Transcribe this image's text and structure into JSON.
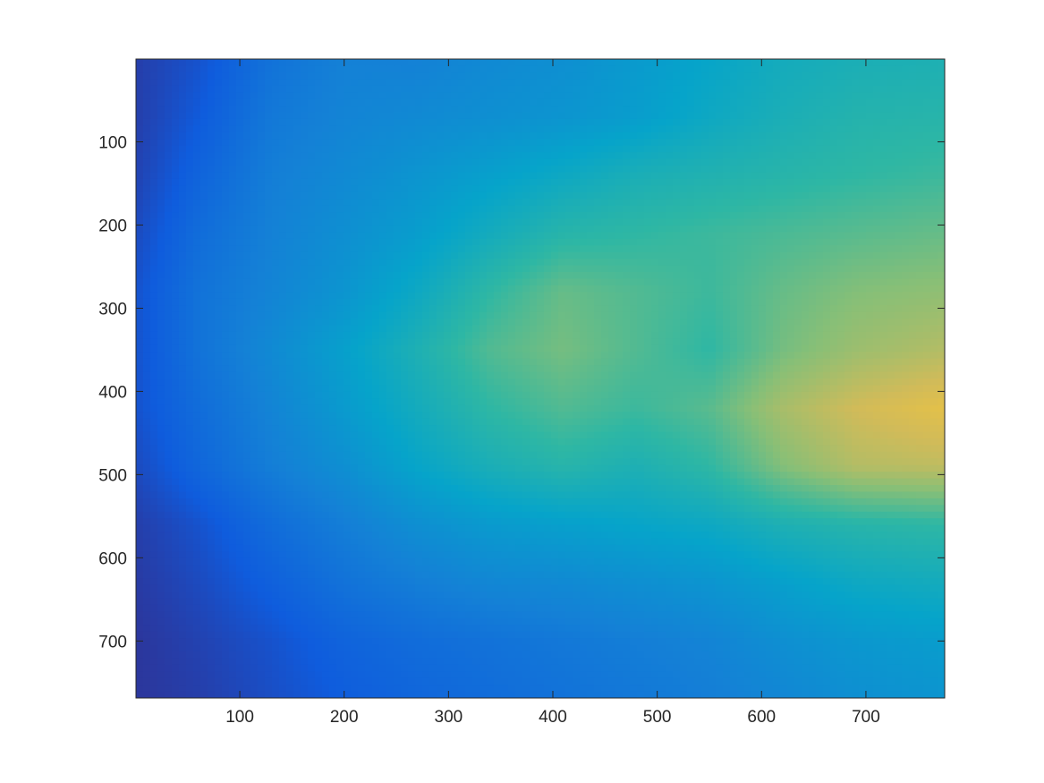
{
  "chart_data": {
    "type": "heatmap",
    "title": "",
    "xlabel": "",
    "ylabel": "",
    "xlim": [
      0.5,
      775.5
    ],
    "ylim": [
      0.5,
      768.5
    ],
    "y_reversed": true,
    "grid": false,
    "colorbar": false,
    "colormap": "parula",
    "x_ticks": [
      100,
      200,
      300,
      400,
      500,
      600,
      700
    ],
    "y_ticks": [
      100,
      200,
      300,
      400,
      500,
      600,
      700
    ],
    "x_tick_labels": [
      "100",
      "200",
      "300",
      "400",
      "500",
      "600",
      "700"
    ],
    "y_tick_labels": [
      "100",
      "200",
      "300",
      "400",
      "500",
      "600",
      "700"
    ],
    "colormap_stops": [
      "#352a87",
      "#0f5cdd",
      "#1481d6",
      "#06a4ca",
      "#2eb7a4",
      "#87bf77",
      "#d1bb59",
      "#fec832",
      "#f9fb0e"
    ],
    "x_sample": [
      0,
      60,
      130,
      200,
      270,
      340,
      410,
      480,
      550,
      620,
      690,
      775
    ],
    "y_sample": [
      0,
      70,
      140,
      210,
      280,
      350,
      420,
      490,
      560,
      630,
      700,
      768
    ],
    "values": [
      [
        0.05,
        0.1,
        0.2,
        0.25,
        0.25,
        0.28,
        0.3,
        0.34,
        0.38,
        0.42,
        0.44,
        0.45
      ],
      [
        0.05,
        0.12,
        0.22,
        0.26,
        0.28,
        0.3,
        0.32,
        0.35,
        0.4,
        0.44,
        0.47,
        0.48
      ],
      [
        0.06,
        0.15,
        0.24,
        0.28,
        0.32,
        0.36,
        0.4,
        0.44,
        0.46,
        0.48,
        0.5,
        0.52
      ],
      [
        0.08,
        0.18,
        0.25,
        0.3,
        0.35,
        0.42,
        0.48,
        0.5,
        0.52,
        0.54,
        0.56,
        0.58
      ],
      [
        0.1,
        0.2,
        0.26,
        0.32,
        0.4,
        0.5,
        0.58,
        0.55,
        0.52,
        0.58,
        0.62,
        0.64
      ],
      [
        0.1,
        0.2,
        0.28,
        0.36,
        0.45,
        0.55,
        0.6,
        0.55,
        0.5,
        0.6,
        0.66,
        0.7
      ],
      [
        0.1,
        0.18,
        0.26,
        0.34,
        0.42,
        0.5,
        0.55,
        0.52,
        0.56,
        0.68,
        0.75,
        0.8
      ],
      [
        0.08,
        0.16,
        0.24,
        0.3,
        0.38,
        0.44,
        0.48,
        0.45,
        0.5,
        0.62,
        0.7,
        0.72
      ],
      [
        0.05,
        0.1,
        0.18,
        0.24,
        0.3,
        0.34,
        0.36,
        0.38,
        0.4,
        0.45,
        0.48,
        0.5
      ],
      [
        0.04,
        0.08,
        0.14,
        0.2,
        0.24,
        0.27,
        0.28,
        0.3,
        0.32,
        0.36,
        0.4,
        0.42
      ],
      [
        0.03,
        0.06,
        0.1,
        0.15,
        0.18,
        0.2,
        0.22,
        0.24,
        0.26,
        0.3,
        0.33,
        0.35
      ],
      [
        0.03,
        0.05,
        0.09,
        0.13,
        0.16,
        0.18,
        0.2,
        0.22,
        0.24,
        0.27,
        0.3,
        0.32
      ]
    ]
  }
}
